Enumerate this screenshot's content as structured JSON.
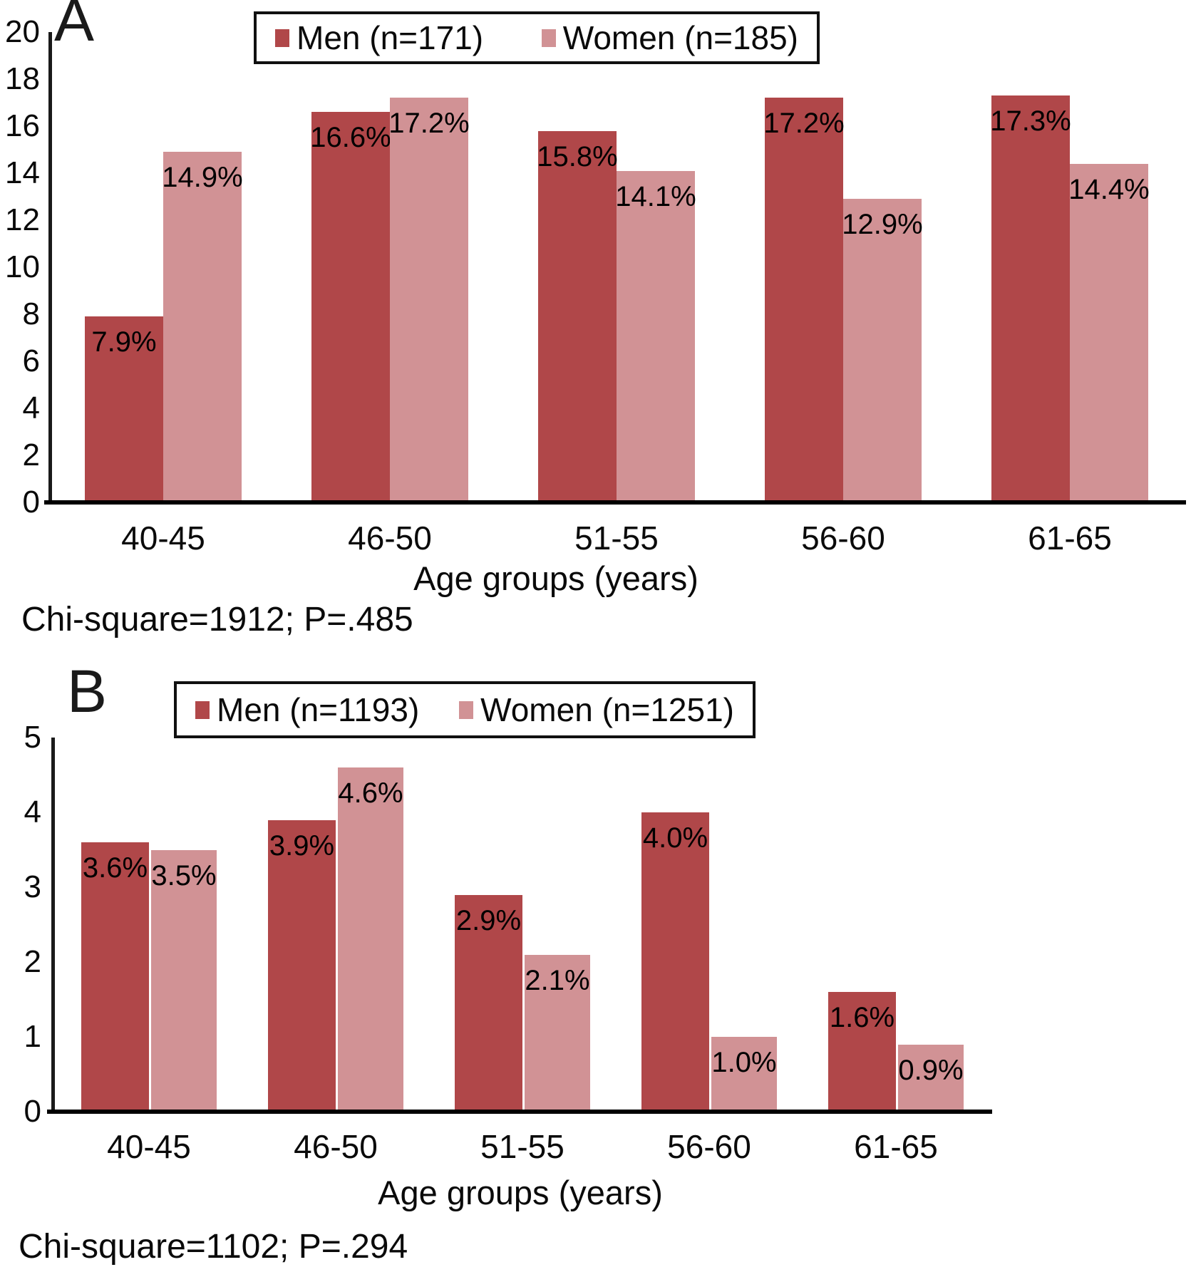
{
  "page": {
    "background": "#ffffff",
    "text_color": "#000000"
  },
  "chart_data": [
    {
      "panel": "A",
      "type": "bar",
      "categories": [
        "40-45",
        "46-50",
        "51-55",
        "56-60",
        "61-65"
      ],
      "series": [
        {
          "name": "Men (n=171)",
          "color": "#b04749",
          "values": [
            7.9,
            16.6,
            15.8,
            17.2,
            17.3
          ]
        },
        {
          "name": "Women (n=185)",
          "color": "#d19295",
          "values": [
            14.9,
            17.2,
            14.1,
            12.9,
            14.4
          ]
        }
      ],
      "value_suffix": "%",
      "title": "",
      "xlabel": "Age groups (years)",
      "ylabel": "",
      "ylim": [
        0,
        20
      ],
      "ytick_step": 2,
      "grid": false,
      "legend_position": "top",
      "caption": "Chi-square=1912; P=.485"
    },
    {
      "panel": "B",
      "type": "bar",
      "categories": [
        "40-45",
        "46-50",
        "51-55",
        "56-60",
        "61-65"
      ],
      "series": [
        {
          "name": "Men (n=1193)",
          "color": "#b04749",
          "values": [
            3.6,
            3.9,
            2.9,
            4.0,
            1.6
          ]
        },
        {
          "name": "Women (n=1251)",
          "color": "#d19295",
          "values": [
            3.5,
            4.6,
            2.1,
            1.0,
            0.9
          ]
        }
      ],
      "value_suffix": "%",
      "title": "",
      "xlabel": "Age groups (years)",
      "ylabel": "",
      "ylim": [
        0,
        5
      ],
      "ytick_step": 1,
      "grid": false,
      "legend_position": "top",
      "caption": "Chi-square=1102; P=.294"
    }
  ]
}
